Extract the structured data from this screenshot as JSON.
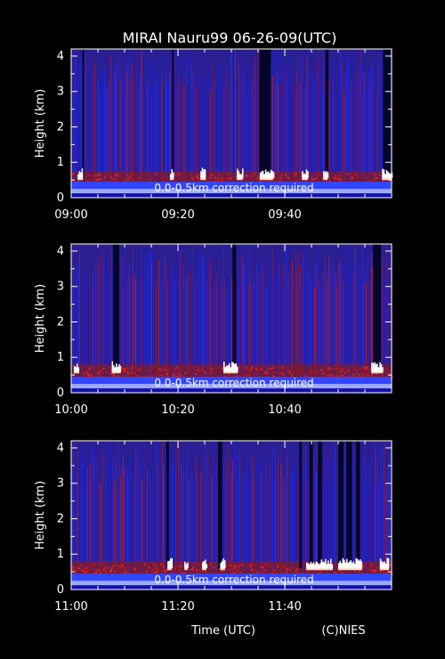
{
  "title": "MIRAI Nauru99 06-26-09(UTC)",
  "xlabel": "Time (UTC)",
  "credit": "(C)NIES",
  "chart_data": [
    {
      "type": "heatmap",
      "ylabel": "Height (km)",
      "ylim": [
        0,
        4.2
      ],
      "yticks": [
        "0",
        "1",
        "2",
        "3",
        "4"
      ],
      "xlim_minutes": [
        0,
        60
      ],
      "xticks": [
        {
          "label": "09:00",
          "min": 0
        },
        {
          "label": "09:20",
          "min": 20
        },
        {
          "label": "09:40",
          "min": 40
        }
      ],
      "annotation": "0.0-0.5km correction required",
      "cloud_base_km": 0.55,
      "dark_columns_min": [
        [
          35.2,
          37.4
        ],
        [
          47.6,
          48.2
        ],
        [
          58.4,
          59.8
        ],
        [
          2.1,
          2.4
        ],
        [
          18.9,
          19.2
        ]
      ],
      "bright_cloud_min": [
        [
          1.2,
          2.2
        ],
        [
          18.5,
          19.2
        ],
        [
          24.2,
          25.2
        ],
        [
          31.0,
          32.1
        ],
        [
          35.3,
          37.8
        ],
        [
          43.2,
          44.3
        ],
        [
          47.2,
          48.0
        ],
        [
          58.2,
          60.0
        ]
      ]
    },
    {
      "type": "heatmap",
      "ylabel": "Height (km)",
      "ylim": [
        0,
        4.2
      ],
      "yticks": [
        "0",
        "1",
        "2",
        "3",
        "4"
      ],
      "xlim_minutes": [
        0,
        60
      ],
      "xticks": [
        {
          "label": "10:00",
          "min": 0
        },
        {
          "label": "10:20",
          "min": 20
        },
        {
          "label": "10:40",
          "min": 40
        }
      ],
      "annotation": "0.0-0.5km correction required",
      "cloud_base_km": 0.6,
      "dark_columns_min": [
        [
          7.8,
          9.0
        ],
        [
          30.2,
          30.9
        ],
        [
          56.5,
          58.0
        ]
      ],
      "bright_cloud_min": [
        [
          0.5,
          1.5
        ],
        [
          7.6,
          9.3
        ],
        [
          28.5,
          31.2
        ],
        [
          56.2,
          58.4
        ]
      ]
    },
    {
      "type": "heatmap",
      "ylabel": "Height (km)",
      "ylim": [
        0,
        4.2
      ],
      "yticks": [
        "0",
        "1",
        "2",
        "3",
        "4"
      ],
      "xlim_minutes": [
        0,
        60
      ],
      "xticks": [
        {
          "label": "11:00",
          "min": 0
        },
        {
          "label": "11:20",
          "min": 20
        },
        {
          "label": "11:40",
          "min": 40
        }
      ],
      "annotation": "0.0-0.5km correction required",
      "cloud_base_km": 0.6,
      "dark_columns_min": [
        [
          17.8,
          18.3
        ],
        [
          27.5,
          28.3
        ],
        [
          42.7,
          43.2
        ],
        [
          44.6,
          45.3
        ],
        [
          46.2,
          47.0
        ],
        [
          50.0,
          51.0
        ],
        [
          51.5,
          52.6
        ],
        [
          53.3,
          54.1
        ]
      ],
      "bright_cloud_min": [
        [
          18.0,
          18.8
        ],
        [
          21.2,
          21.8
        ],
        [
          24.5,
          25.3
        ],
        [
          27.9,
          28.8
        ],
        [
          44.0,
          49.0
        ],
        [
          50.0,
          54.5
        ],
        [
          57.8,
          59.5
        ]
      ]
    }
  ]
}
